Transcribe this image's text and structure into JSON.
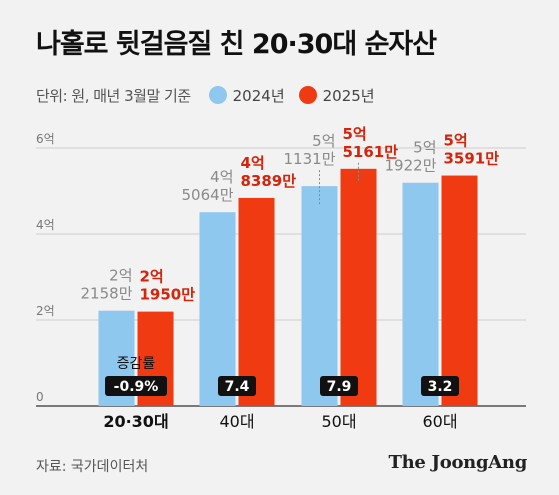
{
  "title": "나홀로 뒷걸음질 친 20·30대 순자산",
  "unit_label": "단위: 원, 매년 3월말 기준",
  "legend": [
    {
      "label": "2024년",
      "color": "#8ec8ee"
    },
    {
      "label": "2025년",
      "color": "#f03a12"
    }
  ],
  "change_label": "증감률",
  "source": "자료: 국가데이터처",
  "brand": "The JoongAng",
  "chart_data": {
    "type": "bar",
    "categories": [
      "20·30대",
      "40대",
      "50대",
      "60대"
    ],
    "series": [
      {
        "name": "2024년",
        "values": [
          2.2158,
          4.5064,
          5.1131,
          5.1922
        ],
        "labels": [
          [
            "2억",
            "2158만"
          ],
          [
            "4억",
            "5064만"
          ],
          [
            "5억",
            "1131만"
          ],
          [
            "5억",
            "1922만"
          ]
        ]
      },
      {
        "name": "2025년",
        "values": [
          2.195,
          4.8389,
          5.5161,
          5.3591
        ],
        "labels": [
          [
            "2억",
            "1950만"
          ],
          [
            "4억",
            "8389만"
          ],
          [
            "5억",
            "5161만"
          ],
          [
            "5억",
            "3591만"
          ]
        ]
      }
    ],
    "change": [
      "-0.9%",
      "7.4",
      "7.9",
      "3.2"
    ],
    "yticks": [
      "0",
      "2억",
      "4억",
      "6억"
    ],
    "ylim": [
      0,
      6
    ],
    "grid": true,
    "colors": {
      "y2024": "#8ec8ee",
      "y2025": "#f03a12",
      "grid": "#cfcfcf",
      "label2024": "#8a8a8a",
      "label2025": "#d4240b",
      "badge": "#111111"
    }
  }
}
